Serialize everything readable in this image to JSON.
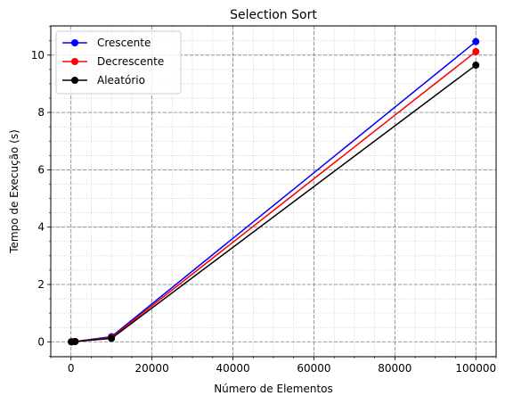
{
  "chart_data": {
    "type": "line",
    "title": "Selection Sort",
    "xlabel": "Número de Elementos",
    "ylabel": "Tempo de Execução (s)",
    "x": [
      100,
      1000,
      10000,
      100000
    ],
    "xlim": [
      -5000,
      105000
    ],
    "ylim": [
      -0.52,
      11.02
    ],
    "xticks": [
      0,
      20000,
      40000,
      60000,
      80000,
      100000
    ],
    "xtick_labels": [
      "0",
      "20000",
      "40000",
      "60000",
      "80000",
      "100000"
    ],
    "yticks": [
      0,
      2,
      4,
      6,
      8,
      10
    ],
    "ytick_labels": [
      "0",
      "2",
      "4",
      "6",
      "8",
      "10"
    ],
    "grid": true,
    "minor_grid": true,
    "legend_position": "top-left",
    "series": [
      {
        "name": "Crescente",
        "color": "#0000ff",
        "values": [
          0.001,
          0.01,
          0.18,
          10.47
        ]
      },
      {
        "name": "Decrescente",
        "color": "#ff0000",
        "values": [
          0.001,
          0.01,
          0.15,
          10.12
        ]
      },
      {
        "name": "Aleatório",
        "color": "#000000",
        "values": [
          0.001,
          0.01,
          0.12,
          9.65
        ]
      }
    ]
  }
}
